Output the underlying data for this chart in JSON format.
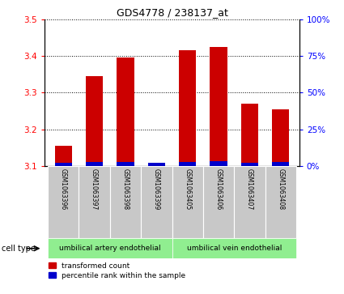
{
  "title": "GDS4778 / 238137_at",
  "samples": [
    "GSM1063396",
    "GSM1063397",
    "GSM1063398",
    "GSM1063399",
    "GSM1063405",
    "GSM1063406",
    "GSM1063407",
    "GSM1063408"
  ],
  "red_values": [
    3.155,
    3.345,
    3.395,
    3.105,
    3.415,
    3.425,
    3.27,
    3.255
  ],
  "blue_percentiles": [
    2.5,
    3.0,
    3.0,
    2.0,
    3.0,
    3.5,
    2.5,
    2.8
  ],
  "ylim_left": [
    3.1,
    3.5
  ],
  "yticks_left": [
    3.1,
    3.2,
    3.3,
    3.4,
    3.5
  ],
  "yticks_right": [
    0,
    25,
    50,
    75,
    100
  ],
  "ylim_right": [
    0,
    100
  ],
  "bar_base": 3.1,
  "cell_types": [
    "umbilical artery endothelial",
    "umbilical vein endothelial"
  ],
  "legend_red": "transformed count",
  "legend_blue": "percentile rank within the sample",
  "cell_type_label": "cell type",
  "red_color": "#CC0000",
  "blue_color": "#0000CC",
  "bg_color": "#C8C8C8",
  "green_color": "#90EE90",
  "white_color": "#FFFFFF"
}
